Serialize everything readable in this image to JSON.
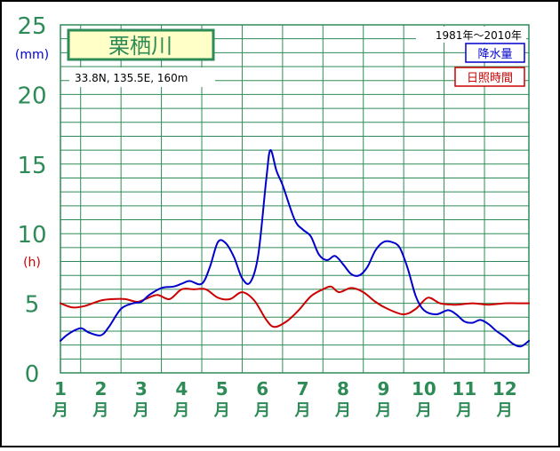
{
  "chart_data": {
    "type": "line",
    "title": "栗栖川",
    "location": "33.8N,  135.5E,  160m",
    "period": "1981年〜2010年",
    "y_unit_left": "(mm)",
    "y_unit_left_alt": "(h)",
    "yticks": [
      "0",
      "5",
      "10",
      "15",
      "20",
      "25"
    ],
    "ylim": [
      0,
      25
    ],
    "xlim": [
      1,
      12.6
    ],
    "months": [
      {
        "num": "1",
        "label": "月"
      },
      {
        "num": "2",
        "label": "月"
      },
      {
        "num": "3",
        "label": "月"
      },
      {
        "num": "4",
        "label": "月"
      },
      {
        "num": "5",
        "label": "月"
      },
      {
        "num": "6",
        "label": "月"
      },
      {
        "num": "7",
        "label": "月"
      },
      {
        "num": "8",
        "label": "月"
      },
      {
        "num": "9",
        "label": "月"
      },
      {
        "num": "10",
        "label": "月"
      },
      {
        "num": "11",
        "label": "月"
      },
      {
        "num": "12",
        "label": "月"
      }
    ],
    "series": [
      {
        "name": "降水量",
        "color": "#0000cc",
        "points": [
          [
            1.0,
            2.3
          ],
          [
            1.2,
            2.8
          ],
          [
            1.5,
            3.2
          ],
          [
            1.7,
            2.9
          ],
          [
            2.0,
            2.7
          ],
          [
            2.2,
            3.3
          ],
          [
            2.5,
            4.6
          ],
          [
            2.8,
            5.0
          ],
          [
            3.0,
            5.1
          ],
          [
            3.2,
            5.6
          ],
          [
            3.5,
            6.1
          ],
          [
            3.8,
            6.2
          ],
          [
            4.0,
            6.4
          ],
          [
            4.2,
            6.6
          ],
          [
            4.5,
            6.4
          ],
          [
            4.7,
            7.6
          ],
          [
            4.9,
            9.4
          ],
          [
            5.1,
            9.3
          ],
          [
            5.3,
            8.3
          ],
          [
            5.5,
            6.8
          ],
          [
            5.7,
            6.5
          ],
          [
            5.9,
            8.5
          ],
          [
            6.1,
            14.0
          ],
          [
            6.2,
            16.0
          ],
          [
            6.35,
            14.5
          ],
          [
            6.5,
            13.5
          ],
          [
            6.8,
            11.0
          ],
          [
            7.0,
            10.3
          ],
          [
            7.2,
            9.8
          ],
          [
            7.4,
            8.5
          ],
          [
            7.6,
            8.1
          ],
          [
            7.8,
            8.4
          ],
          [
            8.0,
            7.8
          ],
          [
            8.2,
            7.1
          ],
          [
            8.4,
            7.0
          ],
          [
            8.6,
            7.6
          ],
          [
            8.8,
            8.8
          ],
          [
            9.0,
            9.4
          ],
          [
            9.2,
            9.4
          ],
          [
            9.4,
            9.0
          ],
          [
            9.6,
            7.5
          ],
          [
            9.8,
            5.5
          ],
          [
            10.0,
            4.5
          ],
          [
            10.3,
            4.2
          ],
          [
            10.6,
            4.5
          ],
          [
            10.8,
            4.2
          ],
          [
            11.0,
            3.7
          ],
          [
            11.2,
            3.6
          ],
          [
            11.4,
            3.8
          ],
          [
            11.6,
            3.5
          ],
          [
            11.8,
            3.0
          ],
          [
            12.0,
            2.6
          ],
          [
            12.2,
            2.1
          ],
          [
            12.4,
            1.9
          ],
          [
            12.6,
            2.3
          ]
        ]
      },
      {
        "name": "日照時間",
        "color": "#cc0000",
        "points": [
          [
            1.0,
            5.0
          ],
          [
            1.3,
            4.7
          ],
          [
            1.6,
            4.8
          ],
          [
            2.0,
            5.2
          ],
          [
            2.3,
            5.3
          ],
          [
            2.6,
            5.3
          ],
          [
            2.9,
            5.1
          ],
          [
            3.1,
            5.3
          ],
          [
            3.4,
            5.6
          ],
          [
            3.7,
            5.3
          ],
          [
            4.0,
            6.0
          ],
          [
            4.3,
            6.0
          ],
          [
            4.6,
            6.0
          ],
          [
            4.9,
            5.4
          ],
          [
            5.2,
            5.3
          ],
          [
            5.5,
            5.8
          ],
          [
            5.8,
            5.2
          ],
          [
            6.1,
            3.8
          ],
          [
            6.3,
            3.3
          ],
          [
            6.6,
            3.7
          ],
          [
            6.9,
            4.5
          ],
          [
            7.2,
            5.5
          ],
          [
            7.5,
            6.0
          ],
          [
            7.7,
            6.2
          ],
          [
            7.9,
            5.8
          ],
          [
            8.2,
            6.1
          ],
          [
            8.5,
            5.8
          ],
          [
            8.8,
            5.1
          ],
          [
            9.1,
            4.6
          ],
          [
            9.5,
            4.2
          ],
          [
            9.8,
            4.6
          ],
          [
            10.1,
            5.4
          ],
          [
            10.4,
            5.0
          ],
          [
            10.8,
            4.9
          ],
          [
            11.2,
            5.0
          ],
          [
            11.6,
            4.9
          ],
          [
            12.0,
            5.0
          ],
          [
            12.3,
            5.0
          ],
          [
            12.6,
            5.0
          ]
        ]
      }
    ]
  }
}
